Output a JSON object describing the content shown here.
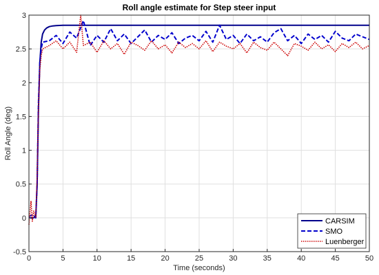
{
  "chart_data": {
    "type": "line",
    "title": "Roll angle estimate for Step steer input",
    "xlabel": "Time (seconds)",
    "ylabel": "Roll Angle (deg)",
    "xlim": [
      0,
      50
    ],
    "ylim": [
      -0.5,
      3
    ],
    "xticks": [
      "0",
      "5",
      "10",
      "15",
      "20",
      "25",
      "30",
      "35",
      "40",
      "45",
      "50"
    ],
    "yticks": [
      "-0.5",
      "0",
      "0.5",
      "1",
      "1.5",
      "2",
      "2.5",
      "3"
    ],
    "grid": true,
    "legend_position": "bottom-right",
    "series": [
      {
        "name": "CARSIM",
        "color": "#00008B",
        "style": "solid",
        "x": [
          0,
          0.6,
          1.0,
          1.2,
          1.4,
          1.6,
          1.8,
          2.0,
          2.3,
          2.6,
          3.0,
          3.5,
          4.0,
          5.0,
          50
        ],
        "y": [
          0,
          0,
          0.01,
          0.5,
          1.6,
          2.3,
          2.6,
          2.72,
          2.78,
          2.81,
          2.83,
          2.84,
          2.845,
          2.85,
          2.85
        ]
      },
      {
        "name": "SMO",
        "color": "#0000CD",
        "style": "dashed",
        "x": [
          0,
          0.6,
          1.0,
          1.2,
          1.4,
          1.6,
          1.8,
          2.0,
          3,
          4,
          5,
          6,
          7,
          8,
          9,
          10,
          11,
          12,
          13,
          14,
          15,
          16,
          17,
          18,
          19,
          20,
          21,
          22,
          23,
          24,
          25,
          26,
          27,
          28,
          29,
          30,
          31,
          32,
          33,
          34,
          35,
          36,
          37,
          38,
          39,
          40,
          41,
          42,
          43,
          44,
          45,
          46,
          47,
          48,
          49,
          50
        ],
        "y": [
          0.02,
          0.05,
          0.0,
          0.5,
          1.7,
          2.3,
          2.5,
          2.6,
          2.62,
          2.7,
          2.58,
          2.75,
          2.66,
          2.92,
          2.55,
          2.7,
          2.6,
          2.8,
          2.62,
          2.72,
          2.58,
          2.68,
          2.78,
          2.6,
          2.7,
          2.64,
          2.74,
          2.58,
          2.66,
          2.7,
          2.62,
          2.76,
          2.6,
          2.85,
          2.64,
          2.7,
          2.58,
          2.72,
          2.62,
          2.68,
          2.6,
          2.74,
          2.8,
          2.62,
          2.7,
          2.58,
          2.72,
          2.64,
          2.7,
          2.6,
          2.76,
          2.66,
          2.62,
          2.72,
          2.68,
          2.64
        ]
      },
      {
        "name": "Luenberger",
        "color": "#CC0000",
        "style": "dotted",
        "x": [
          0,
          0.3,
          0.5,
          0.7,
          1.0,
          1.2,
          1.4,
          1.6,
          1.8,
          2.0,
          3,
          4,
          5,
          6,
          7,
          7.6,
          8,
          9,
          10,
          11,
          12,
          13,
          14,
          15,
          16,
          17,
          18,
          19,
          20,
          21,
          22,
          23,
          24,
          25,
          26,
          27,
          28,
          29,
          30,
          31,
          32,
          33,
          34,
          35,
          36,
          37,
          38,
          39,
          40,
          41,
          42,
          43,
          44,
          45,
          46,
          47,
          48,
          49,
          50
        ],
        "y": [
          -0.1,
          0.25,
          -0.05,
          0.1,
          0.0,
          0.6,
          1.6,
          2.2,
          2.4,
          2.5,
          2.55,
          2.62,
          2.5,
          2.6,
          2.45,
          3.0,
          2.55,
          2.6,
          2.45,
          2.62,
          2.5,
          2.58,
          2.42,
          2.6,
          2.55,
          2.48,
          2.62,
          2.5,
          2.56,
          2.44,
          2.6,
          2.52,
          2.58,
          2.5,
          2.62,
          2.46,
          2.6,
          2.54,
          2.5,
          2.58,
          2.44,
          2.6,
          2.52,
          2.48,
          2.6,
          2.5,
          2.4,
          2.58,
          2.54,
          2.48,
          2.6,
          2.5,
          2.56,
          2.46,
          2.58,
          2.52,
          2.6,
          2.5,
          2.55
        ]
      }
    ]
  }
}
